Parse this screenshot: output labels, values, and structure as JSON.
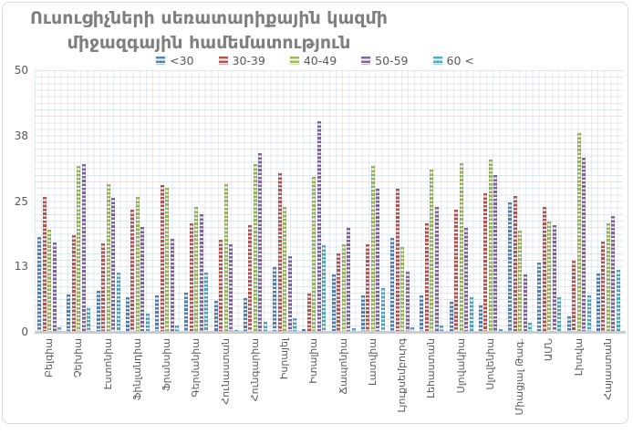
{
  "chart": {
    "title_lines": [
      "Ուսուցիչների սեռատարիքային կազմի",
      "միջազգային համեմատություն"
    ]
  },
  "chart_data": {
    "type": "bar",
    "title": "Ուսուցիչների սեռատարիքային կազմի միջազգային համեմատություն",
    "xlabel": "",
    "ylabel": "",
    "ylim": [
      0,
      50
    ],
    "grid": true,
    "legend_position": "top",
    "yticks": [
      {
        "value": 0,
        "label": "0"
      },
      {
        "value": 12.5,
        "label": "13"
      },
      {
        "value": 25,
        "label": "25"
      },
      {
        "value": 37.5,
        "label": "38"
      },
      {
        "value": 50,
        "label": "50"
      }
    ],
    "categories": [
      "Բելգիա",
      "Չեխիա",
      "Էստոնիա",
      "Ֆինլանդիա",
      "Ֆրանսիա",
      "Գերմանիա",
      "Հունաստան",
      "Հունգարիա",
      "Իսրայել",
      "Իտալիա",
      "Ճապոնիա",
      "Լատվիա",
      "Լյուքսեմբուրգ",
      "Լեհաստան",
      "Սլովակիա",
      "Սլովենիա",
      "Միացյալ Թագ.",
      "ԱՄՆ",
      "Լիտվա",
      "Հայաստան"
    ],
    "series": [
      {
        "name": "<30",
        "color": "#4F81BD",
        "values": [
          18.1,
          7.1,
          7.9,
          6.6,
          7.0,
          7.5,
          6.0,
          6.4,
          12.3,
          0.5,
          10.9,
          7.0,
          18.0,
          7.0,
          5.7,
          5.1,
          24.8,
          13.3,
          3.0,
          11.1
        ]
      },
      {
        "name": "30-39",
        "color": "#C0504D",
        "values": [
          25.8,
          18.4,
          16.9,
          23.4,
          28.0,
          20.8,
          17.6,
          20.4,
          30.4,
          7.4,
          14.9,
          16.7,
          27.4,
          20.8,
          23.3,
          26.4,
          25.9,
          23.9,
          13.6,
          17.2
        ]
      },
      {
        "name": "40-49",
        "color": "#9BBB59",
        "values": [
          19.6,
          31.7,
          28.3,
          25.8,
          27.6,
          23.8,
          28.2,
          32.1,
          23.9,
          29.7,
          16.8,
          31.7,
          16.2,
          31.1,
          32.2,
          33.0,
          19.3,
          21.1,
          38.0,
          20.8
        ]
      },
      {
        "name": "50-59",
        "color": "#8064A2",
        "values": [
          17.1,
          32.0,
          25.6,
          20.0,
          17.7,
          22.4,
          16.7,
          34.1,
          14.5,
          40.2,
          19.9,
          27.3,
          11.5,
          23.8,
          19.9,
          30.0,
          10.9,
          20.4,
          33.3,
          22.1
        ]
      },
      {
        "name": "60 <",
        "color": "#4BACC6",
        "values": [
          0.9,
          4.5,
          11.3,
          3.4,
          1.3,
          11.3,
          0.4,
          2.0,
          2.7,
          16.5,
          0.7,
          8.3,
          0.9,
          1.3,
          6.6,
          0.6,
          1.8,
          6.7,
          7.0,
          11.8
        ]
      }
    ]
  }
}
